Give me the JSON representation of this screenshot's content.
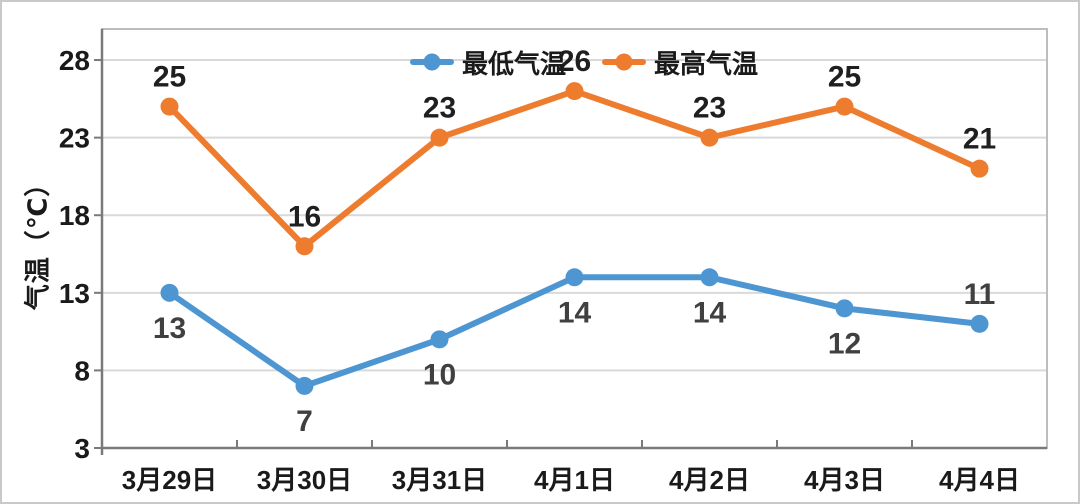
{
  "chart_data": {
    "type": "line",
    "title": "",
    "categories": [
      "3月29日",
      "3月30日",
      "3月31日",
      "4月1日",
      "4月2日",
      "4月3日",
      "4月4日"
    ],
    "xlabel": "",
    "ylabel": "气温（℃）",
    "ylim": [
      3,
      30
    ],
    "yticks": [
      3,
      8,
      13,
      18,
      23,
      28
    ],
    "grid": "horizontal",
    "legend_position": "top-center",
    "series": [
      {
        "id": "min-temp",
        "name": "最低气温",
        "color": "#4E96D2",
        "values": [
          13,
          7,
          10,
          14,
          14,
          12,
          11
        ],
        "label_color": "#404040",
        "label_position": "below",
        "label_position_overrides": {
          "6": "above"
        }
      },
      {
        "id": "max-temp",
        "name": "最高气温",
        "color": "#ED7C2F",
        "values": [
          25,
          16,
          23,
          26,
          23,
          25,
          21
        ],
        "label_color": "#1f1f1f",
        "label_position": "above",
        "label_position_overrides": {}
      }
    ]
  },
  "axis_style": {
    "gridline_color": "#D9D9D9",
    "axis_line_color": "#7A7A7A",
    "plot_border_color": "#BDBDBD",
    "tick_label_color": "#1A1A1A"
  }
}
